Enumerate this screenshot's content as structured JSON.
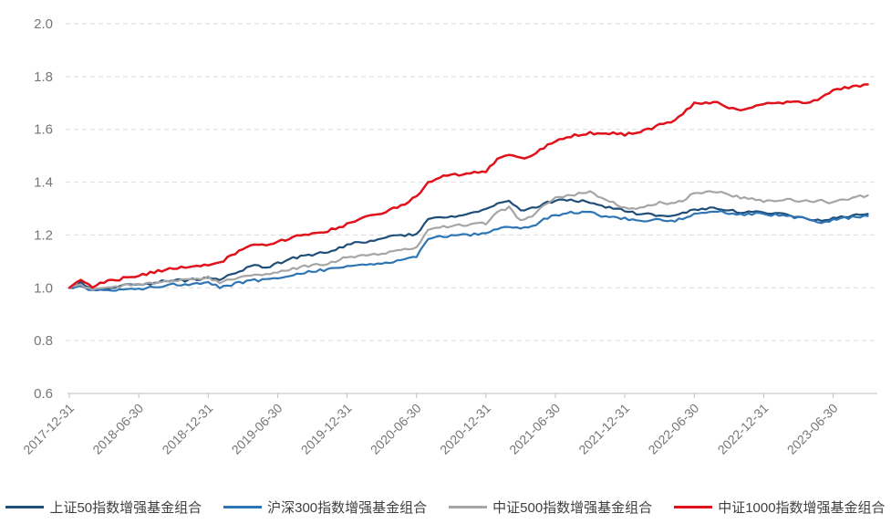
{
  "chart_data": {
    "type": "line",
    "title": "",
    "xlabel": "",
    "ylabel": "",
    "x_start": "2017-12-31",
    "x_interval": "monthly",
    "x_tick_labels": [
      "2017-12-31",
      "2018-06-30",
      "2018-12-31",
      "2019-06-30",
      "2019-12-31",
      "2020-06-30",
      "2020-12-31",
      "2021-06-30",
      "2021-12-31",
      "2022-06-30",
      "2022-12-31",
      "2023-06-30"
    ],
    "y_ticks": [
      0.6,
      0.8,
      1.0,
      1.2,
      1.4,
      1.6,
      1.8,
      2.0
    ],
    "y_tick_labels": [
      "0.6",
      "0.8",
      "1.0",
      "1.2",
      "1.4",
      "1.6",
      "1.8",
      "2.0"
    ],
    "ylim": [
      0.6,
      2.0
    ],
    "grid": "horizontal-dashed",
    "legend_position": "bottom",
    "series": [
      {
        "name": "上证50指数增强基金组合",
        "color": "#1f4e79",
        "values": [
          1.0,
          1.022,
          0.99,
          1.0,
          1.004,
          1.012,
          1.01,
          1.016,
          1.024,
          1.032,
          1.028,
          1.034,
          1.035,
          1.028,
          1.052,
          1.07,
          1.085,
          1.078,
          1.092,
          1.108,
          1.118,
          1.127,
          1.132,
          1.142,
          1.163,
          1.172,
          1.176,
          1.188,
          1.194,
          1.2,
          1.205,
          1.258,
          1.266,
          1.269,
          1.272,
          1.282,
          1.294,
          1.318,
          1.33,
          1.292,
          1.3,
          1.32,
          1.329,
          1.334,
          1.33,
          1.322,
          1.31,
          1.302,
          1.294,
          1.282,
          1.278,
          1.276,
          1.27,
          1.281,
          1.297,
          1.301,
          1.3,
          1.294,
          1.286,
          1.286,
          1.287,
          1.282,
          1.276,
          1.27,
          1.261,
          1.254,
          1.262,
          1.27,
          1.274,
          1.28
        ]
      },
      {
        "name": "沪深300指数增强基金组合",
        "color": "#2e75b6",
        "values": [
          1.0,
          1.008,
          0.988,
          0.992,
          0.99,
          0.996,
          0.996,
          1.002,
          1.008,
          1.014,
          1.013,
          1.018,
          1.021,
          1.002,
          1.012,
          1.022,
          1.028,
          1.03,
          1.039,
          1.048,
          1.056,
          1.064,
          1.068,
          1.074,
          1.081,
          1.086,
          1.09,
          1.092,
          1.1,
          1.11,
          1.12,
          1.188,
          1.194,
          1.198,
          1.2,
          1.202,
          1.205,
          1.226,
          1.234,
          1.222,
          1.232,
          1.258,
          1.276,
          1.282,
          1.286,
          1.287,
          1.272,
          1.266,
          1.262,
          1.256,
          1.256,
          1.258,
          1.252,
          1.262,
          1.28,
          1.286,
          1.29,
          1.284,
          1.276,
          1.28,
          1.28,
          1.276,
          1.271,
          1.266,
          1.256,
          1.25,
          1.258,
          1.264,
          1.268,
          1.272
        ]
      },
      {
        "name": "中证500指数增强基金组合",
        "color": "#a6a6a6",
        "values": [
          1.0,
          1.01,
          0.994,
          1.0,
          1.004,
          1.01,
          1.011,
          1.016,
          1.022,
          1.028,
          1.03,
          1.036,
          1.039,
          1.022,
          1.032,
          1.042,
          1.046,
          1.05,
          1.057,
          1.068,
          1.078,
          1.085,
          1.09,
          1.1,
          1.117,
          1.122,
          1.126,
          1.127,
          1.136,
          1.144,
          1.152,
          1.216,
          1.228,
          1.234,
          1.238,
          1.241,
          1.244,
          1.286,
          1.304,
          1.254,
          1.272,
          1.31,
          1.34,
          1.35,
          1.356,
          1.364,
          1.342,
          1.322,
          1.304,
          1.3,
          1.31,
          1.322,
          1.318,
          1.332,
          1.357,
          1.36,
          1.364,
          1.354,
          1.34,
          1.336,
          1.329,
          1.332,
          1.336,
          1.331,
          1.326,
          1.33,
          1.322,
          1.335,
          1.344,
          1.35
        ]
      },
      {
        "name": "中证1000指数增强基金组合",
        "color": "#e0111a",
        "values": [
          1.0,
          1.03,
          1.004,
          1.022,
          1.028,
          1.04,
          1.046,
          1.056,
          1.066,
          1.074,
          1.078,
          1.084,
          1.086,
          1.092,
          1.122,
          1.15,
          1.163,
          1.158,
          1.173,
          1.188,
          1.198,
          1.205,
          1.212,
          1.224,
          1.24,
          1.258,
          1.272,
          1.28,
          1.3,
          1.32,
          1.347,
          1.4,
          1.418,
          1.428,
          1.43,
          1.436,
          1.44,
          1.488,
          1.506,
          1.49,
          1.502,
          1.53,
          1.559,
          1.572,
          1.58,
          1.587,
          1.58,
          1.586,
          1.58,
          1.59,
          1.6,
          1.616,
          1.624,
          1.66,
          1.697,
          1.7,
          1.702,
          1.684,
          1.672,
          1.682,
          1.694,
          1.7,
          1.702,
          1.706,
          1.7,
          1.72,
          1.745,
          1.756,
          1.762,
          1.77
        ]
      }
    ],
    "style": {
      "grid_color": "#d9d9d9",
      "axis_line_color": "#bfbfbf",
      "axis_label_color": "#767676",
      "legend_text_color": "#3f3f3f",
      "background": "#ffffff"
    }
  }
}
